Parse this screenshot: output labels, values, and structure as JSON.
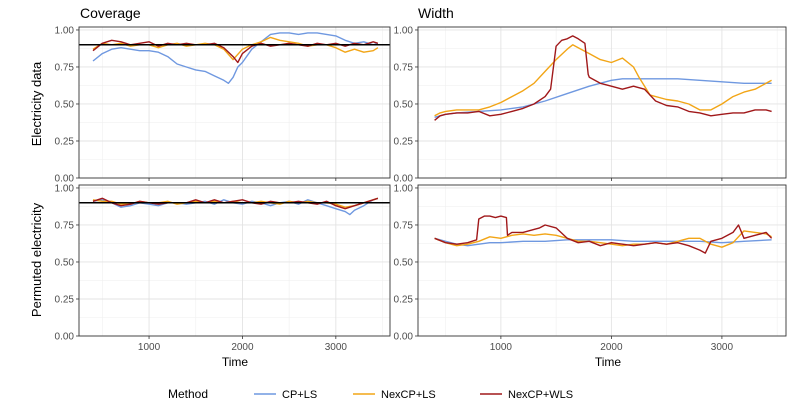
{
  "figure": {
    "col_titles": [
      "Coverage",
      "Width"
    ],
    "row_labels": [
      "Electricity data",
      "Permuted electricity"
    ],
    "xlabel": "Time",
    "legend_title": "Method",
    "legend_items": [
      {
        "name": "CP+LS",
        "color": "#6f98e0"
      },
      {
        "name": "NexCP+LS",
        "color": "#f2a516"
      },
      {
        "name": "NexCP+WLS",
        "color": "#a0181a"
      }
    ],
    "yticks": [
      "0.00",
      "0.25",
      "0.50",
      "0.75",
      "1.00"
    ],
    "xticks": [
      "1000",
      "2000",
      "3000"
    ]
  },
  "chart_data": [
    {
      "type": "line",
      "panel": "electricity-coverage",
      "title": "Coverage",
      "xlabel": "",
      "ylabel": "Electricity data",
      "xlim": [
        250,
        3580
      ],
      "ylim": [
        0,
        1.02
      ],
      "target_line": 0.9,
      "series": [
        {
          "name": "CP+LS",
          "color": "#6f98e0",
          "x": [
            400,
            500,
            600,
            700,
            800,
            900,
            1000,
            1100,
            1200,
            1300,
            1400,
            1500,
            1600,
            1700,
            1800,
            1850,
            1900,
            1950,
            2000,
            2100,
            2200,
            2300,
            2400,
            2500,
            2600,
            2700,
            2800,
            2900,
            3000,
            3100,
            3200,
            3300,
            3400,
            3450
          ],
          "y": [
            0.79,
            0.84,
            0.87,
            0.88,
            0.87,
            0.86,
            0.86,
            0.85,
            0.82,
            0.77,
            0.75,
            0.73,
            0.72,
            0.69,
            0.66,
            0.64,
            0.68,
            0.75,
            0.78,
            0.87,
            0.92,
            0.97,
            0.98,
            0.98,
            0.97,
            0.98,
            0.98,
            0.97,
            0.96,
            0.93,
            0.91,
            0.92,
            0.9,
            0.91
          ]
        },
        {
          "name": "NexCP+LS",
          "color": "#f2a516",
          "x": [
            400,
            500,
            600,
            700,
            800,
            900,
            1000,
            1100,
            1200,
            1300,
            1400,
            1500,
            1600,
            1700,
            1800,
            1900,
            2000,
            2100,
            2200,
            2300,
            2400,
            2500,
            2600,
            2700,
            2800,
            2900,
            3000,
            3100,
            3200,
            3300,
            3400,
            3450
          ],
          "y": [
            0.87,
            0.91,
            0.9,
            0.91,
            0.89,
            0.9,
            0.9,
            0.88,
            0.9,
            0.91,
            0.89,
            0.9,
            0.91,
            0.9,
            0.87,
            0.8,
            0.87,
            0.9,
            0.92,
            0.95,
            0.93,
            0.92,
            0.91,
            0.89,
            0.9,
            0.9,
            0.88,
            0.85,
            0.87,
            0.85,
            0.86,
            0.88
          ]
        },
        {
          "name": "NexCP+WLS",
          "color": "#a0181a",
          "x": [
            400,
            500,
            600,
            700,
            800,
            900,
            1000,
            1100,
            1200,
            1300,
            1400,
            1500,
            1600,
            1700,
            1800,
            1900,
            1950,
            2000,
            2100,
            2200,
            2300,
            2400,
            2500,
            2600,
            2700,
            2800,
            2900,
            3000,
            3100,
            3200,
            3300,
            3400,
            3450
          ],
          "y": [
            0.86,
            0.91,
            0.93,
            0.92,
            0.9,
            0.91,
            0.92,
            0.89,
            0.91,
            0.9,
            0.91,
            0.9,
            0.9,
            0.91,
            0.88,
            0.82,
            0.78,
            0.84,
            0.89,
            0.91,
            0.89,
            0.9,
            0.91,
            0.9,
            0.89,
            0.91,
            0.9,
            0.91,
            0.89,
            0.91,
            0.9,
            0.92,
            0.91
          ]
        }
      ]
    },
    {
      "type": "line",
      "panel": "electricity-width",
      "title": "Width",
      "xlabel": "",
      "ylabel": "",
      "xlim": [
        250,
        3580
      ],
      "ylim": [
        0,
        1.02
      ],
      "series": [
        {
          "name": "CP+LS",
          "color": "#6f98e0",
          "x": [
            400,
            500,
            600,
            800,
            1000,
            1200,
            1400,
            1600,
            1800,
            2000,
            2100,
            2200,
            2400,
            2600,
            2800,
            3000,
            3200,
            3450
          ],
          "y": [
            0.41,
            0.43,
            0.44,
            0.45,
            0.46,
            0.48,
            0.52,
            0.57,
            0.62,
            0.66,
            0.67,
            0.67,
            0.67,
            0.67,
            0.66,
            0.65,
            0.64,
            0.64
          ]
        },
        {
          "name": "NexCP+LS",
          "color": "#f2a516",
          "x": [
            400,
            450,
            500,
            600,
            700,
            800,
            900,
            1000,
            1100,
            1200,
            1300,
            1400,
            1500,
            1600,
            1650,
            1700,
            1800,
            1900,
            2000,
            2100,
            2200,
            2250,
            2350,
            2500,
            2600,
            2700,
            2800,
            2900,
            3000,
            3100,
            3200,
            3300,
            3400,
            3450
          ],
          "y": [
            0.42,
            0.44,
            0.45,
            0.46,
            0.46,
            0.46,
            0.48,
            0.51,
            0.55,
            0.59,
            0.64,
            0.72,
            0.8,
            0.87,
            0.9,
            0.88,
            0.84,
            0.8,
            0.78,
            0.81,
            0.75,
            0.68,
            0.56,
            0.53,
            0.52,
            0.5,
            0.46,
            0.46,
            0.5,
            0.55,
            0.58,
            0.6,
            0.64,
            0.66
          ]
        },
        {
          "name": "NexCP+WLS",
          "color": "#a0181a",
          "x": [
            400,
            450,
            500,
            600,
            700,
            800,
            900,
            1000,
            1100,
            1200,
            1300,
            1400,
            1450,
            1500,
            1550,
            1600,
            1650,
            1700,
            1760,
            1790,
            1800,
            1900,
            2000,
            2100,
            2200,
            2300,
            2400,
            2500,
            2600,
            2700,
            2800,
            2900,
            3000,
            3100,
            3200,
            3300,
            3400,
            3450
          ],
          "y": [
            0.39,
            0.42,
            0.43,
            0.44,
            0.44,
            0.45,
            0.42,
            0.43,
            0.45,
            0.47,
            0.5,
            0.55,
            0.6,
            0.89,
            0.93,
            0.94,
            0.96,
            0.94,
            0.91,
            0.7,
            0.68,
            0.64,
            0.62,
            0.6,
            0.62,
            0.6,
            0.52,
            0.49,
            0.48,
            0.45,
            0.44,
            0.42,
            0.43,
            0.44,
            0.44,
            0.46,
            0.46,
            0.45
          ]
        }
      ]
    },
    {
      "type": "line",
      "panel": "permuted-coverage",
      "title": "",
      "xlabel": "Time",
      "ylabel": "Permuted electricity",
      "xlim": [
        250,
        3580
      ],
      "ylim": [
        0,
        1.02
      ],
      "target_line": 0.9,
      "series": [
        {
          "name": "CP+LS",
          "color": "#6f98e0",
          "x": [
            400,
            500,
            600,
            700,
            800,
            900,
            1000,
            1100,
            1200,
            1300,
            1400,
            1500,
            1600,
            1700,
            1800,
            1900,
            2000,
            2100,
            2200,
            2300,
            2400,
            2500,
            2600,
            2700,
            2800,
            2900,
            3000,
            3100,
            3150,
            3200,
            3300,
            3400,
            3450
          ],
          "y": [
            0.91,
            0.92,
            0.9,
            0.87,
            0.88,
            0.9,
            0.89,
            0.88,
            0.9,
            0.9,
            0.89,
            0.9,
            0.91,
            0.89,
            0.92,
            0.9,
            0.89,
            0.91,
            0.9,
            0.88,
            0.9,
            0.91,
            0.89,
            0.92,
            0.9,
            0.88,
            0.86,
            0.84,
            0.82,
            0.85,
            0.88,
            0.92,
            0.93
          ]
        },
        {
          "name": "NexCP+LS",
          "color": "#f2a516",
          "x": [
            400,
            500,
            600,
            700,
            800,
            900,
            1000,
            1100,
            1200,
            1300,
            1400,
            1500,
            1600,
            1700,
            1800,
            1900,
            2000,
            2100,
            2200,
            2300,
            2400,
            2500,
            2600,
            2700,
            2800,
            2900,
            3000,
            3100,
            3200,
            3300,
            3400,
            3450
          ],
          "y": [
            0.92,
            0.91,
            0.91,
            0.89,
            0.89,
            0.91,
            0.9,
            0.9,
            0.91,
            0.89,
            0.9,
            0.91,
            0.9,
            0.91,
            0.9,
            0.91,
            0.9,
            0.9,
            0.91,
            0.9,
            0.89,
            0.91,
            0.9,
            0.91,
            0.9,
            0.9,
            0.89,
            0.87,
            0.88,
            0.9,
            0.92,
            0.93
          ]
        },
        {
          "name": "NexCP+WLS",
          "color": "#a0181a",
          "x": [
            400,
            500,
            600,
            700,
            800,
            900,
            1000,
            1100,
            1200,
            1300,
            1400,
            1500,
            1600,
            1700,
            1800,
            1900,
            2000,
            2100,
            2200,
            2300,
            2400,
            2500,
            2600,
            2700,
            2800,
            2900,
            3000,
            3100,
            3200,
            3300,
            3400,
            3450
          ],
          "y": [
            0.91,
            0.93,
            0.9,
            0.88,
            0.89,
            0.91,
            0.9,
            0.89,
            0.9,
            0.9,
            0.9,
            0.92,
            0.9,
            0.92,
            0.9,
            0.91,
            0.92,
            0.9,
            0.89,
            0.91,
            0.9,
            0.9,
            0.91,
            0.9,
            0.89,
            0.91,
            0.88,
            0.86,
            0.88,
            0.9,
            0.92,
            0.93
          ]
        }
      ]
    },
    {
      "type": "line",
      "panel": "permuted-width",
      "title": "",
      "xlabel": "Time",
      "ylabel": "",
      "xlim": [
        250,
        3580
      ],
      "ylim": [
        0,
        1.02
      ],
      "series": [
        {
          "name": "CP+LS",
          "color": "#6f98e0",
          "x": [
            400,
            500,
            600,
            700,
            800,
            900,
            1000,
            1200,
            1400,
            1600,
            1800,
            2000,
            2200,
            2400,
            2600,
            2800,
            3000,
            3200,
            3450
          ],
          "y": [
            0.66,
            0.64,
            0.62,
            0.61,
            0.62,
            0.63,
            0.63,
            0.64,
            0.64,
            0.65,
            0.65,
            0.65,
            0.64,
            0.64,
            0.64,
            0.64,
            0.63,
            0.64,
            0.65
          ]
        },
        {
          "name": "NexCP+LS",
          "color": "#f2a516",
          "x": [
            400,
            500,
            600,
            700,
            800,
            900,
            1000,
            1100,
            1200,
            1300,
            1400,
            1500,
            1600,
            1700,
            1800,
            1900,
            2000,
            2100,
            2200,
            2300,
            2400,
            2500,
            2600,
            2700,
            2800,
            2900,
            3000,
            3100,
            3200,
            3300,
            3400,
            3450
          ],
          "y": [
            0.66,
            0.63,
            0.61,
            0.62,
            0.64,
            0.67,
            0.66,
            0.68,
            0.69,
            0.68,
            0.69,
            0.68,
            0.66,
            0.64,
            0.64,
            0.63,
            0.62,
            0.61,
            0.62,
            0.62,
            0.63,
            0.62,
            0.64,
            0.66,
            0.66,
            0.62,
            0.6,
            0.63,
            0.71,
            0.7,
            0.69,
            0.67
          ]
        },
        {
          "name": "NexCP+WLS",
          "color": "#a0181a",
          "x": [
            400,
            500,
            600,
            700,
            780,
            800,
            850,
            900,
            950,
            1000,
            1050,
            1060,
            1100,
            1200,
            1300,
            1350,
            1400,
            1500,
            1600,
            1700,
            1800,
            1900,
            2000,
            2100,
            2200,
            2300,
            2400,
            2500,
            2600,
            2700,
            2800,
            2850,
            2900,
            3000,
            3100,
            3150,
            3200,
            3300,
            3400,
            3450
          ],
          "y": [
            0.66,
            0.63,
            0.62,
            0.63,
            0.65,
            0.79,
            0.81,
            0.81,
            0.8,
            0.81,
            0.8,
            0.68,
            0.7,
            0.7,
            0.72,
            0.73,
            0.75,
            0.73,
            0.66,
            0.63,
            0.64,
            0.61,
            0.63,
            0.62,
            0.61,
            0.62,
            0.63,
            0.62,
            0.63,
            0.61,
            0.58,
            0.56,
            0.64,
            0.66,
            0.7,
            0.75,
            0.66,
            0.68,
            0.7,
            0.66
          ]
        }
      ]
    }
  ]
}
